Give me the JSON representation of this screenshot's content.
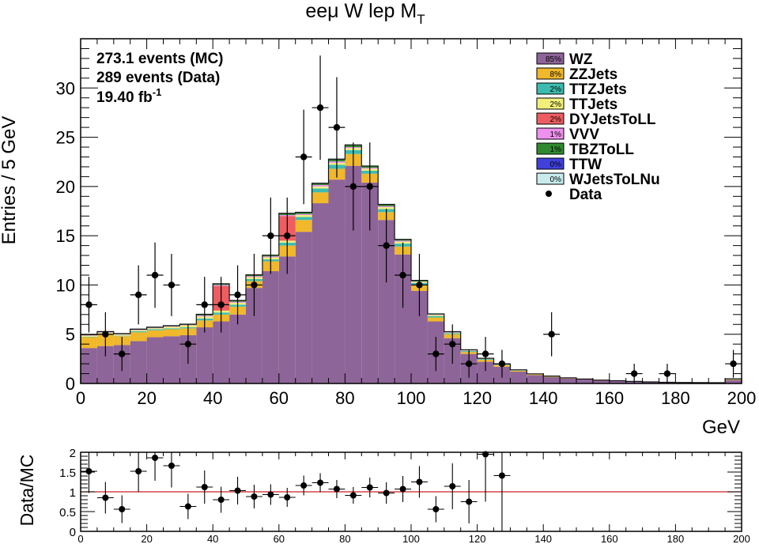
{
  "chart_data": [
    {
      "type": "bar",
      "stacked": true,
      "title_main": "eeμ W lep M",
      "title_sub": "T",
      "xlabel": "GeV",
      "ylabel": "Entries / 5 GeV",
      "xlim": [
        0,
        200
      ],
      "ylim": [
        0,
        35
      ],
      "x_ticks": [
        0,
        20,
        40,
        60,
        80,
        100,
        120,
        140,
        160,
        180,
        200
      ],
      "y_ticks": [
        0,
        5,
        10,
        15,
        20,
        25,
        30
      ],
      "bin_width": 5,
      "info": {
        "line1": "273.1 events (MC)",
        "line2": "289 events (Data)",
        "line3": "19.40 fb",
        "line3_sup": "-1"
      },
      "bin_low_edges": [
        0,
        5,
        10,
        15,
        20,
        25,
        30,
        35,
        40,
        45,
        50,
        55,
        60,
        65,
        70,
        75,
        80,
        85,
        90,
        95,
        100,
        105,
        110,
        115,
        120,
        125,
        130,
        135,
        140,
        145,
        150,
        155,
        160,
        165,
        170,
        175,
        180,
        185,
        190,
        195
      ],
      "series": [
        {
          "name": "WZ",
          "pct": "85%",
          "color": "#8e6598",
          "values": [
            3.6,
            3.8,
            3.9,
            4.3,
            4.7,
            4.8,
            4.9,
            5.7,
            6.3,
            7.0,
            9.7,
            11.4,
            12.9,
            15.4,
            18.3,
            20.7,
            22.1,
            20.4,
            16.6,
            13.1,
            9.4,
            6.3,
            4.6,
            3.0,
            2.2,
            1.7,
            1.2,
            0.85,
            0.65,
            0.5,
            0.4,
            0.3,
            0.25,
            0.18,
            0.14,
            0.1,
            0.09,
            0.08,
            0.07,
            0.35
          ]
        },
        {
          "name": "ZZJets",
          "pct": "8%",
          "color": "#f0b82a",
          "values": [
            1.1,
            1.2,
            0.9,
            0.9,
            0.7,
            0.7,
            0.7,
            0.7,
            0.7,
            0.8,
            0.7,
            1.0,
            1.1,
            1.2,
            1.1,
            1.1,
            1.2,
            0.9,
            0.8,
            0.8,
            0.6,
            0.4,
            0.4,
            0.2,
            0.2,
            0.15,
            0.1,
            0.07,
            0.05,
            0.04,
            0.03,
            0.03,
            0.02,
            0.02,
            0.01,
            0.01,
            0.01,
            0.01,
            0.01,
            0.05
          ]
        },
        {
          "name": "TTZJets",
          "pct": "2%",
          "color": "#3cbcb0",
          "values": [
            0.05,
            0.05,
            0.05,
            0.1,
            0.1,
            0.1,
            0.1,
            0.2,
            0.2,
            0.2,
            0.2,
            0.2,
            0.3,
            0.3,
            0.4,
            0.4,
            0.4,
            0.3,
            0.3,
            0.3,
            0.2,
            0.15,
            0.1,
            0.1,
            0.08,
            0.06,
            0.05,
            0.03,
            0.02,
            0.02,
            0.01,
            0.01,
            0.01,
            0.01,
            0.01,
            0.01,
            0,
            0,
            0,
            0.03
          ]
        },
        {
          "name": "TTJets",
          "pct": "2%",
          "color": "#f0f07a",
          "values": [
            0.1,
            0.1,
            0.1,
            0.1,
            0.1,
            0.15,
            0.2,
            0.2,
            0.2,
            0.2,
            0.2,
            0.2,
            0.2,
            0.2,
            0.2,
            0.2,
            0.2,
            0.2,
            0.2,
            0.2,
            0.1,
            0.1,
            0.05,
            0.05,
            0.03,
            0.02,
            0.02,
            0.01,
            0.01,
            0.01,
            0.01,
            0,
            0,
            0,
            0,
            0,
            0,
            0,
            0,
            0.02
          ]
        },
        {
          "name": "DYJetsToLL",
          "pct": "2%",
          "color": "#ee5d62",
          "values": [
            0,
            0,
            0,
            0,
            0,
            0,
            0,
            0,
            2.5,
            0,
            0,
            0,
            2.5,
            0,
            0,
            0,
            0,
            0,
            0,
            0,
            0,
            0,
            0,
            0,
            0,
            0,
            0,
            0,
            0,
            0,
            0,
            0,
            0,
            0,
            0,
            0,
            0,
            0,
            0,
            0
          ]
        },
        {
          "name": "VVV",
          "pct": "1%",
          "color": "#ee90ee",
          "values": [
            0.05,
            0.05,
            0.05,
            0.05,
            0.05,
            0.05,
            0.05,
            0.1,
            0.1,
            0.1,
            0.1,
            0.1,
            0.1,
            0.1,
            0.15,
            0.15,
            0.1,
            0.1,
            0.1,
            0.1,
            0.05,
            0.05,
            0.05,
            0.03,
            0.02,
            0.02,
            0.01,
            0.01,
            0.01,
            0,
            0,
            0,
            0,
            0,
            0,
            0,
            0,
            0,
            0,
            0.01
          ]
        },
        {
          "name": "TBZToLL",
          "pct": "1%",
          "color": "#2f8a2f",
          "values": [
            0.05,
            0.05,
            0.05,
            0.05,
            0.05,
            0.05,
            0.05,
            0.1,
            0.1,
            0.1,
            0.1,
            0.1,
            0.15,
            0.15,
            0.15,
            0.2,
            0.2,
            0.15,
            0.15,
            0.1,
            0.1,
            0.05,
            0.05,
            0.03,
            0.02,
            0.02,
            0.01,
            0.01,
            0.01,
            0,
            0,
            0,
            0,
            0,
            0,
            0,
            0,
            0,
            0,
            0.01
          ]
        },
        {
          "name": "TTW",
          "pct": "0%",
          "color": "#4040dd",
          "values": [
            0.02,
            0.02,
            0.02,
            0.02,
            0.02,
            0.02,
            0.02,
            0.03,
            0.03,
            0.03,
            0.03,
            0.03,
            0.03,
            0.03,
            0.03,
            0.03,
            0.03,
            0.03,
            0.03,
            0.03,
            0.02,
            0.02,
            0.01,
            0.01,
            0.01,
            0.01,
            0,
            0,
            0,
            0,
            0,
            0,
            0,
            0,
            0,
            0,
            0,
            0,
            0,
            0
          ]
        },
        {
          "name": "WJetsToLNu",
          "pct": "0%",
          "color": "#c8ecec",
          "values": [
            0,
            0,
            0,
            0,
            0,
            0,
            0,
            0,
            0,
            0,
            0,
            0,
            0,
            0,
            0,
            0,
            0,
            0,
            0,
            0,
            0,
            0,
            0,
            0,
            0,
            0,
            0,
            0,
            0,
            0,
            0,
            0,
            0,
            0,
            0,
            0,
            0,
            0,
            0,
            0
          ]
        }
      ],
      "data_points": {
        "name": "Data",
        "x": [
          2.5,
          7.5,
          12.5,
          17.5,
          22.5,
          27.5,
          32.5,
          37.5,
          42.5,
          47.5,
          52.5,
          57.5,
          62.5,
          67.5,
          72.5,
          77.5,
          82.5,
          87.5,
          92.5,
          97.5,
          102.5,
          107.5,
          112.5,
          117.5,
          122.5,
          127.5,
          142.5,
          167.5,
          177.5,
          197.5
        ],
        "y": [
          8,
          5,
          3,
          9,
          11,
          10,
          4,
          8,
          8,
          9,
          10,
          15,
          15,
          23,
          28,
          26,
          20,
          20,
          14,
          11,
          10,
          3,
          4,
          2,
          3,
          2,
          5,
          1,
          1,
          2
        ]
      }
    },
    {
      "type": "scatter",
      "ylabel": "Data/MC",
      "xlim": [
        0,
        200
      ],
      "ylim": [
        0,
        2
      ],
      "x_ticks": [
        0,
        20,
        40,
        60,
        80,
        100,
        120,
        140,
        160,
        180,
        200
      ],
      "y_ticks": [
        0,
        0.5,
        1,
        1.5,
        2
      ],
      "y_tick_labels": [
        "0",
        "0.5",
        "1",
        "1.5",
        "2"
      ],
      "reference_line": 1,
      "reference_color": "#cc2222",
      "x": [
        2.5,
        7.5,
        12.5,
        17.5,
        22.5,
        27.5,
        32.5,
        37.5,
        42.5,
        47.5,
        52.5,
        57.5,
        62.5,
        67.5,
        72.5,
        77.5,
        82.5,
        87.5,
        92.5,
        97.5,
        102.5,
        107.5,
        112.5,
        117.5,
        122.5,
        127.5
      ],
      "y": [
        1.52,
        0.85,
        0.56,
        1.52,
        1.86,
        1.66,
        0.63,
        1.12,
        0.8,
        1.03,
        0.88,
        0.93,
        0.86,
        1.16,
        1.23,
        1.07,
        0.91,
        1.11,
        0.97,
        1.07,
        1.25,
        0.56,
        1.14,
        0.75,
        1.95,
        1.41
      ],
      "err": [
        0.55,
        0.4,
        0.35,
        0.52,
        0.58,
        0.55,
        0.32,
        0.42,
        0.33,
        0.35,
        0.3,
        0.26,
        0.24,
        0.25,
        0.24,
        0.23,
        0.21,
        0.25,
        0.27,
        0.33,
        0.4,
        0.33,
        0.58,
        0.55,
        1.2,
        1.4
      ]
    }
  ]
}
